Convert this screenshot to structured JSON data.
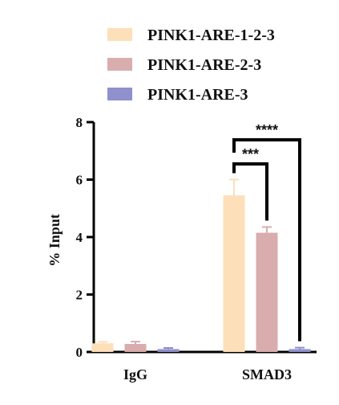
{
  "chart_data": {
    "type": "bar",
    "categories": [
      "IgG",
      "SMAD3"
    ],
    "series": [
      {
        "name": "PINK1-ARE-1-2-3",
        "color": "#fddfb9",
        "values": [
          0.3,
          5.45
        ],
        "errors": [
          0.05,
          0.55
        ]
      },
      {
        "name": "PINK1-ARE-2-3",
        "color": "#d9adad",
        "values": [
          0.28,
          4.15
        ],
        "errors": [
          0.08,
          0.2
        ]
      },
      {
        "name": "PINK1-ARE-3",
        "color": "#8f90cc",
        "values": [
          0.1,
          0.1
        ],
        "errors": [
          0.04,
          0.05
        ]
      }
    ],
    "ylabel": "% Input",
    "ylim": [
      0,
      8
    ],
    "yticks": [
      "0",
      "2",
      "4",
      "6",
      "8"
    ],
    "legend_position": "top",
    "grid": false,
    "annotations": [
      {
        "text": "***",
        "category": "SMAD3",
        "from_series": 0,
        "to_series": 1
      },
      {
        "text": "****",
        "category": "SMAD3",
        "from_series": 0,
        "to_series": 2
      }
    ]
  }
}
